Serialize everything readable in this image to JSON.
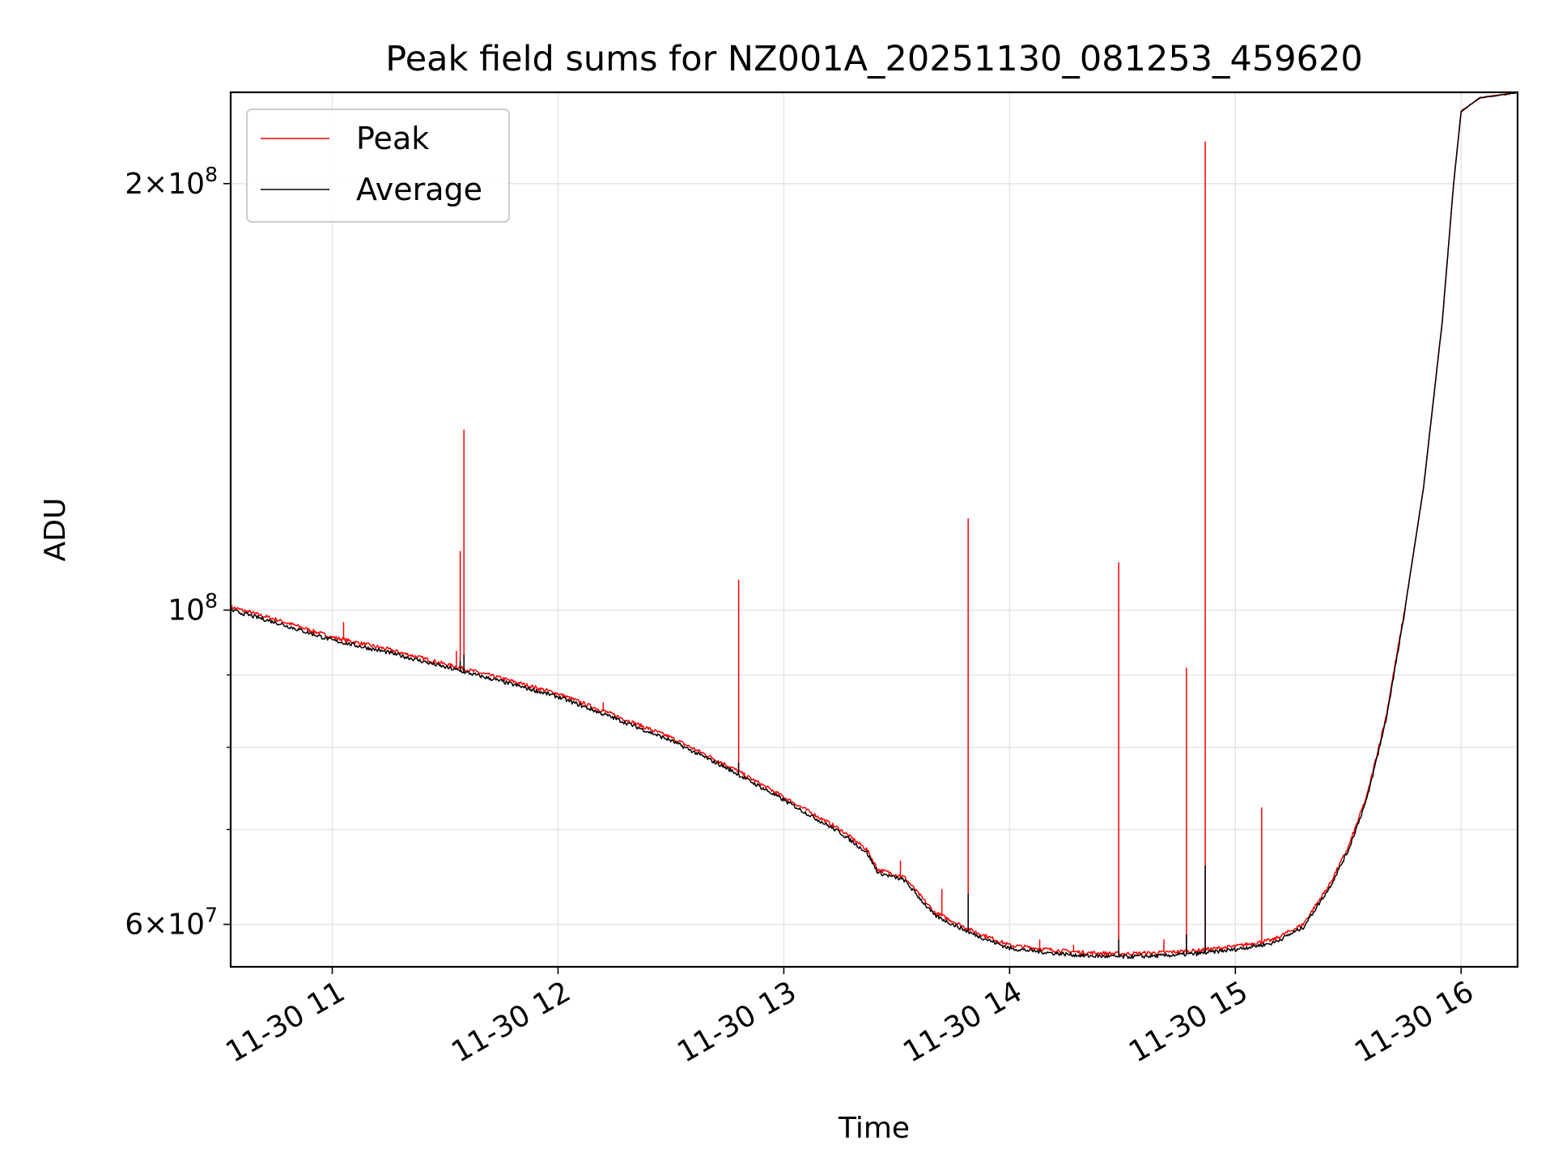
{
  "chart_data": {
    "type": "line",
    "title": "Peak field sums for NZ001A_20251130_081253_459620",
    "xlabel": "Time",
    "ylabel": "ADU",
    "yscale": "log",
    "xlim": [
      "2025-11-30 10:33",
      "2025-11-30 16:15"
    ],
    "ylim": [
      56000000,
      232000000
    ],
    "grid": true,
    "legend_position": "top-left",
    "x_ticks": [
      "2025-11-30 11:00",
      "2025-11-30 12:00",
      "2025-11-30 13:00",
      "2025-11-30 14:00",
      "2025-11-30 15:00",
      "2025-11-30 16:00"
    ],
    "x_tick_labels": [
      "11-30 11",
      "11-30 12",
      "11-30 13",
      "11-30 14",
      "11-30 15",
      "11-30 16"
    ],
    "y_major_ticks": [
      60000000,
      100000000,
      200000000
    ],
    "y_tick_labels": [
      {
        "mantissa": "6",
        "exponent": "7",
        "value": 60000000
      },
      {
        "mantissa": "",
        "exponent": "8",
        "value": 100000000
      },
      {
        "mantissa": "2",
        "exponent": "8",
        "value": 200000000
      }
    ],
    "y_minor_ticks": [
      70000000,
      80000000,
      90000000
    ],
    "baseline": {
      "x": [
        "2025-11-30 10:33",
        "2025-11-30 10:45",
        "2025-11-30 11:00",
        "2025-11-30 11:15",
        "2025-11-30 11:30",
        "2025-11-30 11:45",
        "2025-11-30 12:00",
        "2025-11-30 12:15",
        "2025-11-30 12:30",
        "2025-11-30 12:45",
        "2025-11-30 13:00",
        "2025-11-30 13:15",
        "2025-11-30 13:22",
        "2025-11-30 13:25",
        "2025-11-30 13:32",
        "2025-11-30 13:40",
        "2025-11-30 13:50",
        "2025-11-30 14:00",
        "2025-11-30 14:10",
        "2025-11-30 14:20",
        "2025-11-30 14:30",
        "2025-11-30 14:40",
        "2025-11-30 14:50",
        "2025-11-30 15:00",
        "2025-11-30 15:10",
        "2025-11-30 15:18",
        "2025-11-30 15:25",
        "2025-11-30 15:30",
        "2025-11-30 15:35",
        "2025-11-30 15:40",
        "2025-11-30 15:45",
        "2025-11-30 15:50",
        "2025-11-30 15:55",
        "2025-11-30 15:58",
        "2025-11-30 16:00",
        "2025-11-30 16:05",
        "2025-11-30 16:15"
      ],
      "y": [
        100500000,
        98500000,
        95700000,
        93800000,
        91600000,
        89500000,
        87300000,
        84300000,
        81300000,
        77700000,
        73800000,
        70000000,
        67800000,
        65600000,
        64800000,
        61200000,
        59400000,
        58000000,
        57600000,
        57300000,
        57200000,
        57300000,
        57500000,
        57900000,
        58500000,
        60000000,
        64000000,
        68000000,
        74000000,
        84000000,
        100000000,
        122000000,
        160000000,
        200000000,
        225000000,
        230000000,
        232000000
      ]
    },
    "series": [
      {
        "name": "Peak",
        "color": "#ff0000",
        "spikes": [
          {
            "x": "2025-11-30 11:03",
            "y": 98000000
          },
          {
            "x": "2025-11-30 11:33",
            "y": 93500000
          },
          {
            "x": "2025-11-30 11:34",
            "y": 110000000
          },
          {
            "x": "2025-11-30 11:35",
            "y": 134000000
          },
          {
            "x": "2025-11-30 12:12",
            "y": 86000000
          },
          {
            "x": "2025-11-30 12:48",
            "y": 105000000
          },
          {
            "x": "2025-11-30 13:31",
            "y": 66500000
          },
          {
            "x": "2025-11-30 13:42",
            "y": 63500000
          },
          {
            "x": "2025-11-30 13:49",
            "y": 116000000
          },
          {
            "x": "2025-11-30 14:08",
            "y": 58500000
          },
          {
            "x": "2025-11-30 14:17",
            "y": 58000000
          },
          {
            "x": "2025-11-30 14:29",
            "y": 108000000
          },
          {
            "x": "2025-11-30 14:41",
            "y": 58500000
          },
          {
            "x": "2025-11-30 14:47",
            "y": 91000000
          },
          {
            "x": "2025-11-30 14:52",
            "y": 214000000
          },
          {
            "x": "2025-11-30 15:07",
            "y": 72500000
          },
          {
            "x": "2025-11-30 15:38",
            "y": 79000000
          }
        ]
      },
      {
        "name": "Average",
        "color": "#000000",
        "spikes": [
          {
            "x": "2025-11-30 11:34",
            "y": 92000000
          },
          {
            "x": "2025-11-30 11:35",
            "y": 93000000
          },
          {
            "x": "2025-11-30 12:48",
            "y": 78000000
          },
          {
            "x": "2025-11-30 13:49",
            "y": 63000000
          },
          {
            "x": "2025-11-30 14:29",
            "y": 58500000
          },
          {
            "x": "2025-11-30 14:47",
            "y": 59000000
          },
          {
            "x": "2025-11-30 14:52",
            "y": 66000000
          }
        ]
      }
    ]
  }
}
